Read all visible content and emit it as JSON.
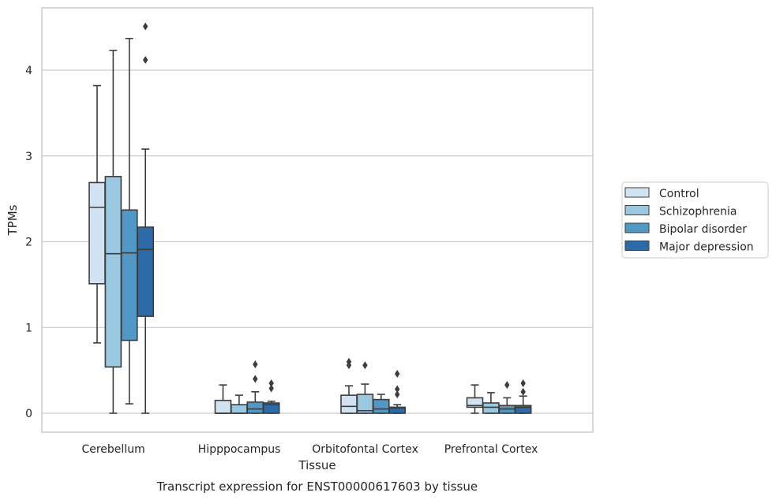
{
  "chart_data": {
    "type": "box",
    "caption": "Transcript expression for ENST00000617603 by tissue",
    "xlabel": "Tissue",
    "ylabel": "TPMs",
    "ylim": [
      -0.22,
      4.7
    ],
    "yticks": [
      0,
      1,
      2,
      3,
      4
    ],
    "grid": "horizontal",
    "legend_position": "right",
    "categories": [
      "Cerebellum",
      "Hipppocampus",
      "Orbitofontal Cortex",
      "Prefrontal Cortex"
    ],
    "series": [
      {
        "name": "Control",
        "color": "#d1e2f2",
        "boxes": [
          {
            "whislo": 0.82,
            "q1": 1.51,
            "med": 2.4,
            "q3": 2.69,
            "whishi": 3.82,
            "fliers": []
          },
          {
            "whislo": 0.0,
            "q1": 0.0,
            "med": 0.0,
            "q3": 0.15,
            "whishi": 0.33,
            "fliers": []
          },
          {
            "whislo": 0.0,
            "q1": 0.0,
            "med": 0.08,
            "q3": 0.21,
            "whishi": 0.32,
            "fliers": [
              0.56,
              0.6
            ]
          },
          {
            "whislo": 0.0,
            "q1": 0.07,
            "med": 0.09,
            "q3": 0.18,
            "whishi": 0.33,
            "fliers": []
          }
        ]
      },
      {
        "name": "Schizophrenia",
        "color": "#9ac8e0",
        "boxes": [
          {
            "whislo": 0.0,
            "q1": 0.54,
            "med": 1.86,
            "q3": 2.76,
            "whishi": 4.23,
            "fliers": []
          },
          {
            "whislo": 0.0,
            "q1": 0.0,
            "med": 0.0,
            "q3": 0.1,
            "whishi": 0.21,
            "fliers": []
          },
          {
            "whislo": 0.0,
            "q1": 0.0,
            "med": 0.03,
            "q3": 0.22,
            "whishi": 0.34,
            "fliers": [
              0.56
            ]
          },
          {
            "whislo": 0.0,
            "q1": 0.0,
            "med": 0.07,
            "q3": 0.12,
            "whishi": 0.24,
            "fliers": []
          }
        ]
      },
      {
        "name": "Bipolar disorder",
        "color": "#5198c7",
        "boxes": [
          {
            "whislo": 0.11,
            "q1": 0.85,
            "med": 1.87,
            "q3": 2.37,
            "whishi": 4.37,
            "fliers": []
          },
          {
            "whislo": 0.0,
            "q1": 0.0,
            "med": 0.05,
            "q3": 0.13,
            "whishi": 0.25,
            "fliers": [
              0.4,
              0.57
            ]
          },
          {
            "whislo": 0.0,
            "q1": 0.0,
            "med": 0.05,
            "q3": 0.16,
            "whishi": 0.22,
            "fliers": []
          },
          {
            "whislo": 0.0,
            "q1": 0.0,
            "med": 0.05,
            "q3": 0.09,
            "whishi": 0.18,
            "fliers": [
              0.33
            ]
          }
        ]
      },
      {
        "name": "Major depression",
        "color": "#2c6aa8",
        "boxes": [
          {
            "whislo": 0.0,
            "q1": 1.13,
            "med": 1.91,
            "q3": 2.17,
            "whishi": 3.08,
            "fliers": [
              4.12,
              4.51
            ]
          },
          {
            "whislo": 0.0,
            "q1": 0.0,
            "med": 0.1,
            "q3": 0.12,
            "whishi": 0.14,
            "fliers": [
              0.29,
              0.35
            ]
          },
          {
            "whislo": 0.0,
            "q1": 0.0,
            "med": 0.06,
            "q3": 0.07,
            "whishi": 0.1,
            "fliers": [
              0.22,
              0.28,
              0.46
            ]
          },
          {
            "whislo": 0.0,
            "q1": 0.0,
            "med": 0.07,
            "q3": 0.09,
            "whishi": 0.2,
            "fliers": [
              0.25,
              0.35
            ]
          }
        ]
      }
    ]
  }
}
